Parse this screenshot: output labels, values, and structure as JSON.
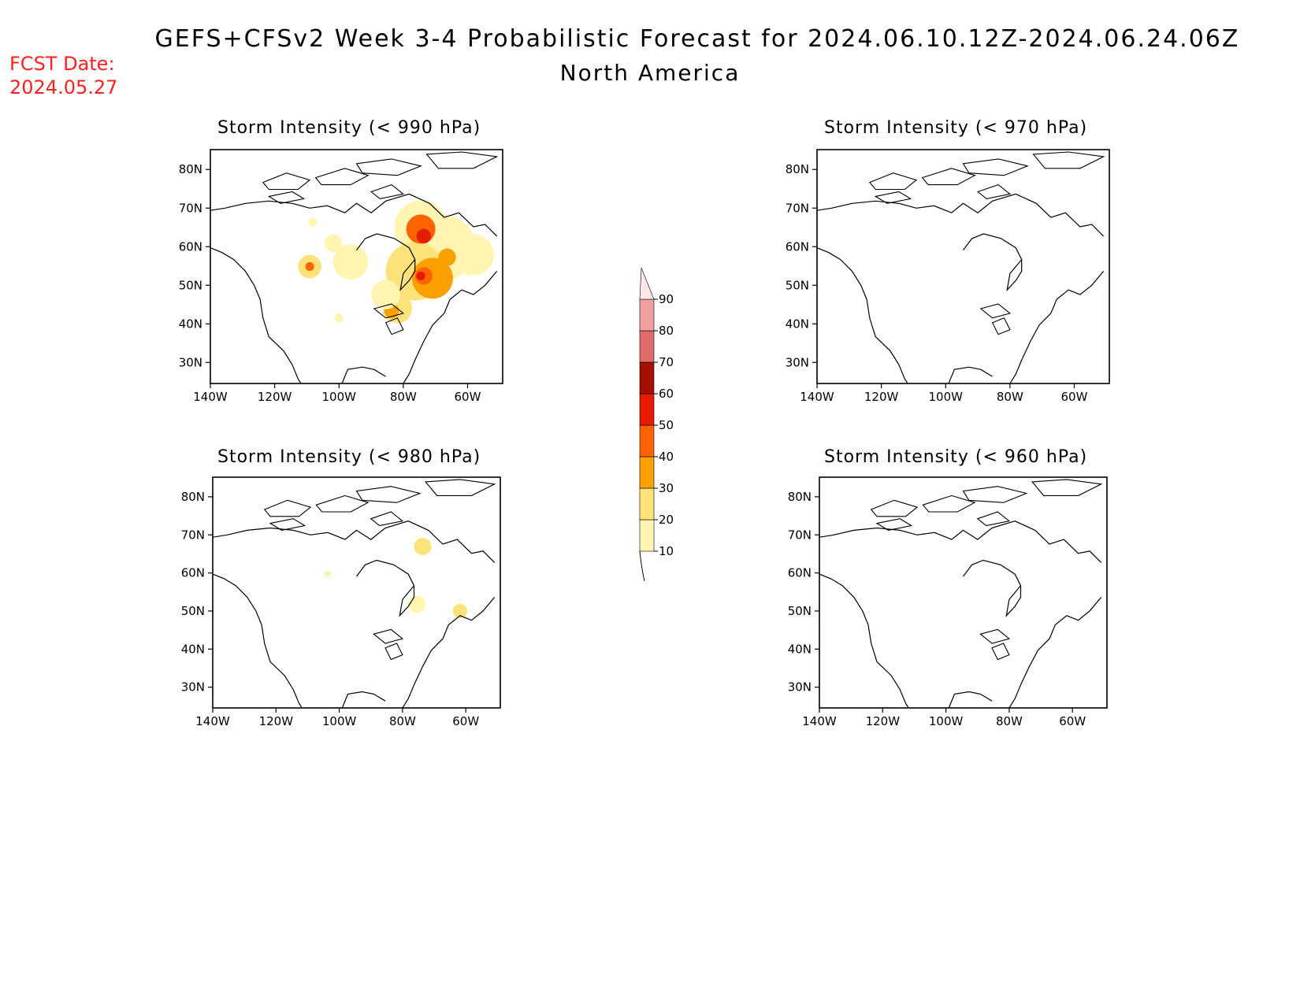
{
  "header": {
    "title": "GEFS+CFSv2 Week 3-4 Probabilistic Forecast for 2024.06.10.12Z-2024.06.24.06Z",
    "subtitle": "North America",
    "fcst_label": "FCST Date:",
    "fcst_date": "2024.05.27"
  },
  "panels": [
    {
      "title": "Storm Intensity (< 990 hPa)"
    },
    {
      "title": "Storm Intensity (< 970 hPa)"
    },
    {
      "title": "Storm Intensity (< 980 hPa)"
    },
    {
      "title": "Storm Intensity (< 960 hPa)"
    }
  ],
  "axes": {
    "lat_ticks": [
      "80N",
      "70N",
      "60N",
      "50N",
      "40N",
      "30N"
    ],
    "lon_ticks": [
      "140W",
      "120W",
      "100W",
      "80W",
      "60W"
    ]
  },
  "colorbar": {
    "levels": [
      "10",
      "20",
      "30",
      "40",
      "50",
      "60",
      "70",
      "80",
      "90"
    ],
    "colors": [
      "#fff5b0",
      "#fde27a",
      "#fca000",
      "#fd6400",
      "#e61b00",
      "#a50f00",
      "#de6a6a",
      "#f0a0a0",
      "#fde6e6"
    ]
  }
}
